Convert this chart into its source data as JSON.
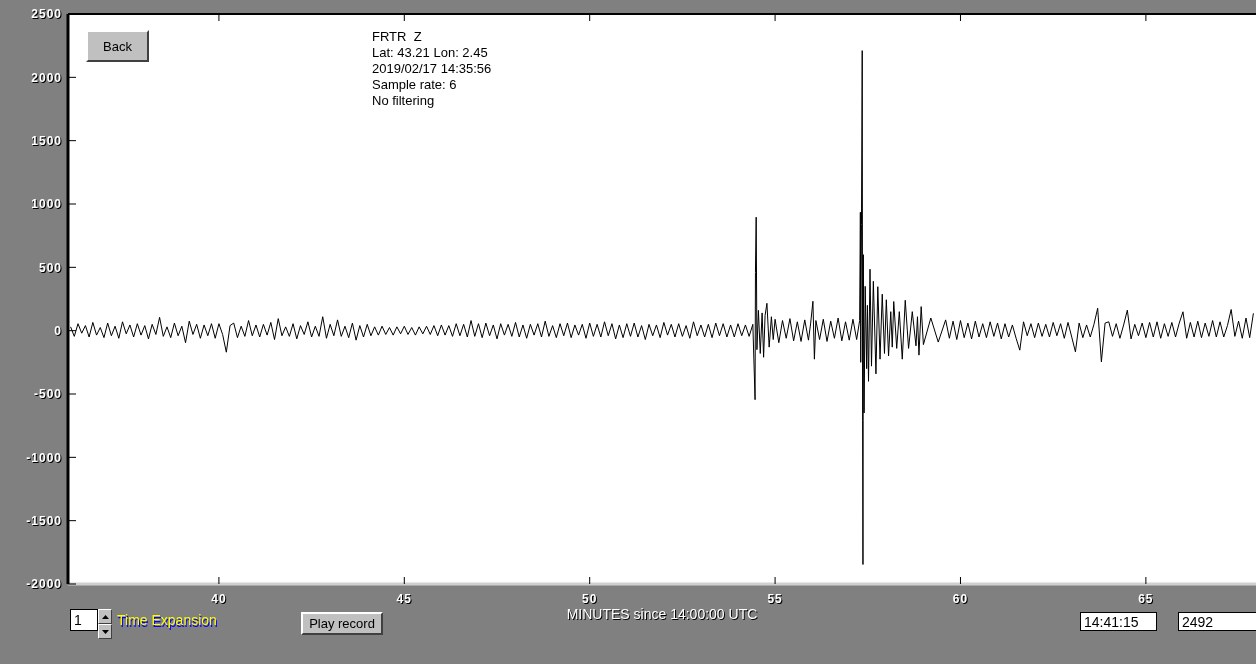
{
  "chart_data": {
    "type": "line",
    "title": "FRTR  Z",
    "xlabel": "MINUTES since 14:00:00 UTC",
    "annotations": [
      "Lat: 43.21 Lon: 2.45",
      "2019/02/17 14:35:56",
      "Sample rate: 6",
      "No filtering",
      "Back",
      "1",
      "Time Expansion",
      "Play record",
      "14:41:15",
      "2492"
    ],
    "xlim": [
      35.93,
      67.97
    ],
    "xticks": [
      40,
      45,
      50,
      55,
      60,
      65
    ],
    "ylim": [
      -2000,
      2500
    ],
    "yticks": [
      -2000,
      -1500,
      -1000,
      -500,
      0,
      500,
      1000,
      1500,
      2000,
      2500
    ],
    "x": [
      36,
      36.1,
      36.2,
      36.3,
      36.4,
      36.5,
      36.6,
      36.7,
      36.8,
      36.9,
      37,
      37.1,
      37.2,
      37.3,
      37.4,
      37.5,
      37.6,
      37.7,
      37.8,
      37.9,
      38,
      38.1,
      38.2,
      38.3,
      38.4,
      38.5,
      38.6,
      38.7,
      38.8,
      38.9,
      39,
      39.1,
      39.2,
      39.3,
      39.4,
      39.5,
      39.6,
      39.7,
      39.8,
      39.9,
      40,
      40.1,
      40.2,
      40.3,
      40.4,
      40.5,
      40.6,
      40.7,
      40.8,
      40.9,
      41,
      41.1,
      41.2,
      41.3,
      41.4,
      41.5,
      41.6,
      41.7,
      41.8,
      41.9,
      42,
      42.1,
      42.2,
      42.3,
      42.4,
      42.5,
      42.6,
      42.7,
      42.8,
      42.9,
      43,
      43.1,
      43.2,
      43.3,
      43.4,
      43.5,
      43.6,
      43.7,
      43.8,
      43.9,
      44,
      44.1,
      44.2,
      44.3,
      44.4,
      44.5,
      44.6,
      44.7,
      44.8,
      44.9,
      45,
      45.1,
      45.2,
      45.3,
      45.4,
      45.5,
      45.6,
      45.7,
      45.8,
      45.9,
      46,
      46.1,
      46.2,
      46.3,
      46.4,
      46.5,
      46.6,
      46.7,
      46.8,
      46.9,
      47,
      47.1,
      47.2,
      47.3,
      47.4,
      47.5,
      47.6,
      47.7,
      47.8,
      47.9,
      48,
      48.1,
      48.2,
      48.3,
      48.4,
      48.5,
      48.6,
      48.7,
      48.8,
      48.9,
      49,
      49.1,
      49.2,
      49.3,
      49.4,
      49.5,
      49.6,
      49.7,
      49.8,
      49.9,
      50,
      50.1,
      50.2,
      50.3,
      50.4,
      50.5,
      50.6,
      50.7,
      50.8,
      50.9,
      51,
      51.1,
      51.2,
      51.3,
      51.4,
      51.5,
      51.6,
      51.7,
      51.8,
      51.9,
      52,
      52.1,
      52.2,
      52.3,
      52.4,
      52.5,
      52.6,
      52.7,
      52.8,
      52.9,
      53,
      53.1,
      53.2,
      53.3,
      53.4,
      53.5,
      53.6,
      53.7,
      53.8,
      53.9,
      54,
      54.1,
      54.2,
      54.3,
      54.4,
      54.46,
      54.47,
      54.49,
      54.51,
      54.55,
      54.6,
      54.65,
      54.69,
      54.73,
      54.78,
      54.84,
      54.9,
      54.95,
      55,
      55.1,
      55.2,
      55.3,
      55.4,
      55.5,
      55.6,
      55.7,
      55.8,
      55.9,
      55.96,
      56.02,
      56.06,
      56.1,
      56.2,
      56.3,
      56.4,
      56.5,
      56.6,
      56.7,
      56.8,
      56.9,
      57,
      57.1,
      57.2,
      57.28,
      57.3,
      57.31,
      57.33,
      57.35,
      57.36,
      57.37,
      57.38,
      57.4,
      57.43,
      57.47,
      57.49,
      57.52,
      57.56,
      57.6,
      57.65,
      57.72,
      57.77,
      57.83,
      57.89,
      57.95,
      58,
      58.06,
      58.12,
      58.16,
      58.2,
      58.28,
      58.35,
      58.43,
      58.51,
      58.6,
      58.7,
      58.8,
      58.84,
      58.88,
      58.94,
      59,
      59.2,
      59.4,
      59.6,
      59.7,
      59.8,
      59.9,
      60,
      60.1,
      60.2,
      60.3,
      60.4,
      60.5,
      60.6,
      60.7,
      60.8,
      60.9,
      61,
      61.1,
      61.2,
      61.3,
      61.4,
      61.5,
      61.6,
      61.7,
      61.8,
      61.9,
      62,
      62.1,
      62.2,
      62.3,
      62.4,
      62.5,
      62.6,
      62.7,
      62.8,
      62.9,
      63,
      63.1,
      63.2,
      63.3,
      63.4,
      63.5,
      63.6,
      63.7,
      63.8,
      63.9,
      64,
      64.1,
      64.2,
      64.3,
      64.4,
      64.5,
      64.6,
      64.7,
      64.8,
      64.9,
      65,
      65.1,
      65.2,
      65.3,
      65.4,
      65.5,
      65.6,
      65.7,
      65.8,
      65.9,
      66,
      66.1,
      66.2,
      66.3,
      66.4,
      66.5,
      66.6,
      66.7,
      66.8,
      66.9,
      67,
      67.1,
      67.2,
      67.3,
      67.4,
      67.5,
      67.6,
      67.7,
      67.8,
      67.9
    ],
    "series": [
      {
        "color": "#000000",
        "values": [
          30,
          -45,
          55,
          -20,
          40,
          -50,
          65,
          -35,
          25,
          -55,
          60,
          -40,
          35,
          -60,
          70,
          -25,
          45,
          -50,
          55,
          -35,
          40,
          -65,
          50,
          -30,
          105,
          -45,
          30,
          -55,
          60,
          -40,
          35,
          -95,
          75,
          -30,
          50,
          -60,
          45,
          -40,
          55,
          -60,
          55,
          -30,
          -170,
          40,
          60,
          -55,
          35,
          -45,
          80,
          -40,
          45,
          -50,
          50,
          -35,
          65,
          -70,
          95,
          -40,
          30,
          -45,
          55,
          -65,
          40,
          -30,
          70,
          -50,
          35,
          -45,
          110,
          -60,
          50,
          -40,
          85,
          -45,
          35,
          -55,
          60,
          -75,
          40,
          -50,
          50,
          -40,
          30,
          -35,
          35,
          -30,
          25,
          -35,
          30,
          -25,
          35,
          -30,
          25,
          -35,
          30,
          -25,
          35,
          -30,
          40,
          -40,
          45,
          -35,
          40,
          -45,
          55,
          -40,
          50,
          -50,
          80,
          -45,
          55,
          -55,
          60,
          -40,
          45,
          -65,
          55,
          -35,
          50,
          -45,
          65,
          -50,
          45,
          -60,
          50,
          -35,
          55,
          -50,
          75,
          -45,
          40,
          -55,
          55,
          -40,
          60,
          -55,
          45,
          -35,
          50,
          -60,
          60,
          -45,
          50,
          -50,
          70,
          -40,
          55,
          -65,
          45,
          -55,
          55,
          -45,
          60,
          -50,
          40,
          -70,
          50,
          -40,
          45,
          -55,
          65,
          -35,
          50,
          -50,
          55,
          -45,
          40,
          -60,
          70,
          -40,
          45,
          -50,
          50,
          -55,
          60,
          -40,
          55,
          -50,
          45,
          -50,
          55,
          -40,
          45,
          -45,
          50,
          -545,
          460,
          896,
          -150,
          160,
          -180,
          140,
          -210,
          120,
          216,
          -130,
          110,
          -70,
          90,
          -95,
          80,
          -60,
          95,
          -80,
          70,
          -85,
          85,
          -75,
          60,
          232,
          -225,
          80,
          -70,
          90,
          -85,
          75,
          -60,
          100,
          -80,
          70,
          -75,
          90,
          -70,
          80,
          935,
          -250,
          840,
          2211,
          -707,
          -1846,
          600,
          -650,
          350,
          -300,
          200,
          -400,
          485,
          -280,
          390,
          -341,
          347,
          -225,
          288,
          -180,
          244,
          -200,
          150,
          -130,
          230,
          -140,
          150,
          -225,
          240,
          -140,
          150,
          -120,
          110,
          -193,
          190,
          -110,
          100,
          -90,
          85,
          -60,
          75,
          -70,
          80,
          -55,
          60,
          -65,
          75,
          -50,
          55,
          -55,
          70,
          -45,
          60,
          -65,
          55,
          -50,
          45,
          -60,
          -154,
          70,
          -40,
          55,
          -55,
          60,
          -45,
          50,
          -50,
          65,
          -40,
          55,
          -60,
          65,
          -50,
          -167,
          60,
          -55,
          45,
          -50,
          50,
          177,
          -246,
          60,
          70,
          -45,
          55,
          -60,
          45,
          162,
          -65,
          50,
          -40,
          60,
          -55,
          65,
          -50,
          70,
          -60,
          55,
          -45,
          65,
          -50,
          60,
          149,
          -60,
          65,
          -50,
          75,
          -55,
          60,
          -45,
          80,
          -50,
          70,
          -50,
          40,
          167,
          -45,
          75,
          -60,
          100,
          -55,
          137
        ]
      }
    ]
  }
}
